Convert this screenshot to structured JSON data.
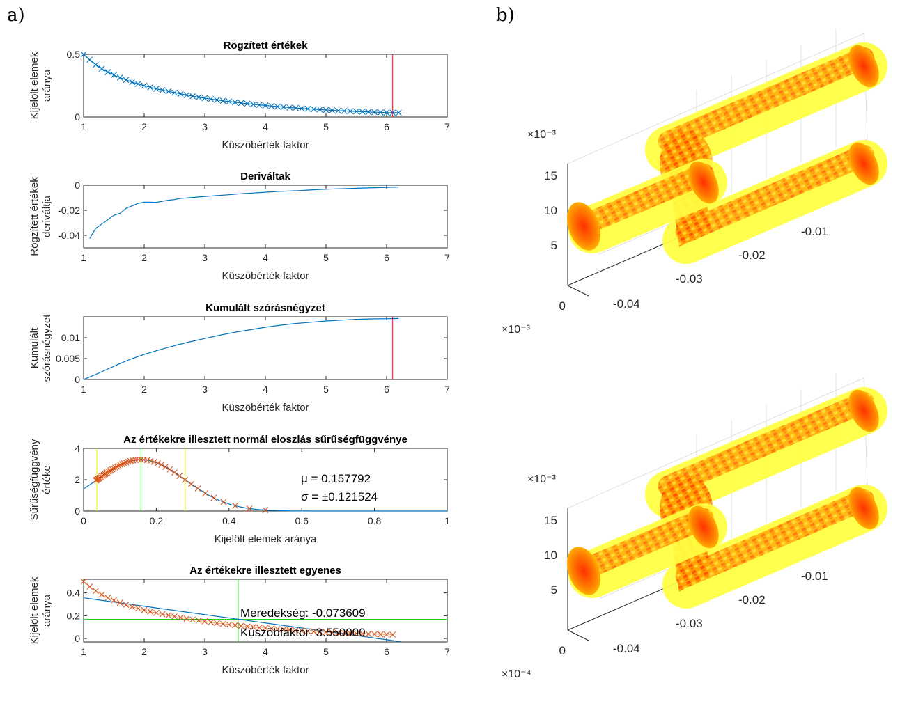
{
  "panel_a_label": "a)",
  "panel_b_label": "b)",
  "chart_data": [
    {
      "type": "line",
      "title": "Rögzített értékek",
      "xlabel": "Küszöbérték faktor",
      "ylabel": [
        "Kijelölt elemek",
        "aránya"
      ],
      "xlim": [
        1,
        7
      ],
      "ylim": [
        0,
        0.5
      ],
      "xticks": [
        1,
        2,
        3,
        4,
        5,
        6,
        7
      ],
      "yticks": [
        0,
        0.5
      ],
      "ytick_labels": [
        "0",
        "0.5"
      ],
      "marker": "x",
      "series": [
        {
          "color": "#0072BD",
          "x": [
            1.0,
            1.1,
            1.2,
            1.3,
            1.4,
            1.5,
            1.6,
            1.7,
            1.8,
            1.9,
            2.0,
            2.1,
            2.2,
            2.3,
            2.4,
            2.5,
            2.6,
            2.7,
            2.8,
            2.9,
            3.0,
            3.1,
            3.2,
            3.3,
            3.4,
            3.5,
            3.6,
            3.7,
            3.8,
            3.9,
            4.0,
            4.1,
            4.2,
            4.3,
            4.4,
            4.5,
            4.6,
            4.7,
            4.8,
            4.9,
            5.0,
            5.1,
            5.2,
            5.3,
            5.4,
            5.5,
            5.6,
            5.7,
            5.8,
            5.9,
            6.0,
            6.1,
            6.2
          ],
          "y": [
            0.5,
            0.456,
            0.417,
            0.385,
            0.358,
            0.335,
            0.314,
            0.296,
            0.279,
            0.264,
            0.25,
            0.237,
            0.225,
            0.214,
            0.204,
            0.194,
            0.184,
            0.175,
            0.166,
            0.158,
            0.15,
            0.143,
            0.136,
            0.129,
            0.123,
            0.117,
            0.111,
            0.106,
            0.101,
            0.096,
            0.092,
            0.087,
            0.083,
            0.079,
            0.075,
            0.072,
            0.068,
            0.065,
            0.062,
            0.059,
            0.056,
            0.053,
            0.05,
            0.048,
            0.046,
            0.044,
            0.042,
            0.04,
            0.038,
            0.036,
            0.035,
            0.034,
            0.034
          ]
        }
      ],
      "vline": {
        "x": 6.1,
        "color": "#FF0000"
      }
    },
    {
      "type": "line",
      "title": "Deriváltak",
      "xlabel": "Küszöbérték faktor",
      "ylabel": [
        "Rögzített értékek",
        "deriváltja"
      ],
      "xlim": [
        1,
        7
      ],
      "ylim": [
        -0.05,
        0
      ],
      "xticks": [
        1,
        2,
        3,
        4,
        5,
        6,
        7
      ],
      "yticks": [
        -0.04,
        -0.02,
        0
      ],
      "ytick_labels": [
        "-0.04",
        "-0.02",
        "0"
      ],
      "series": [
        {
          "color": "#0072BD",
          "x": [
            1.1,
            1.2,
            1.3,
            1.4,
            1.5,
            1.6,
            1.7,
            1.8,
            1.9,
            2.0,
            2.1,
            2.2,
            2.3,
            2.4,
            2.5,
            2.6,
            2.7,
            2.8,
            2.9,
            3.0,
            3.2,
            3.4,
            3.6,
            3.8,
            4.0,
            4.2,
            4.4,
            4.6,
            4.8,
            5.0,
            5.2,
            5.4,
            5.6,
            5.8,
            6.0,
            6.2
          ],
          "y": [
            -0.0425,
            -0.0345,
            -0.031,
            -0.0275,
            -0.024,
            -0.0225,
            -0.0185,
            -0.0165,
            -0.0145,
            -0.0135,
            -0.0135,
            -0.0137,
            -0.0128,
            -0.012,
            -0.0115,
            -0.0105,
            -0.0102,
            -0.0098,
            -0.0094,
            -0.009,
            -0.0083,
            -0.0076,
            -0.0068,
            -0.0062,
            -0.0056,
            -0.005,
            -0.0046,
            -0.0042,
            -0.0036,
            -0.0032,
            -0.0029,
            -0.0026,
            -0.0023,
            -0.002,
            -0.0018,
            -0.0015
          ]
        }
      ]
    },
    {
      "type": "line",
      "title": "Kumulált szórásnégyzet",
      "xlabel": "Küszöbérték faktor",
      "ylabel": [
        "Kumulált",
        "szórásnégyzet"
      ],
      "xlim": [
        1,
        7
      ],
      "ylim": [
        0,
        0.015
      ],
      "xticks": [
        1,
        2,
        3,
        4,
        5,
        6,
        7
      ],
      "yticks": [
        0,
        0.005,
        0.01
      ],
      "ytick_labels": [
        "0",
        "0.005",
        "0.01"
      ],
      "series": [
        {
          "color": "#0072BD",
          "x": [
            1.0,
            1.2,
            1.4,
            1.6,
            1.8,
            2.0,
            2.25,
            2.5,
            2.75,
            3.0,
            3.25,
            3.5,
            3.75,
            4.0,
            4.25,
            4.5,
            4.75,
            5.0,
            5.25,
            5.5,
            5.75,
            6.0,
            6.2
          ],
          "y": [
            0.0,
            0.0012,
            0.0025,
            0.0038,
            0.005,
            0.006,
            0.0071,
            0.0081,
            0.009,
            0.0098,
            0.0106,
            0.0113,
            0.0119,
            0.0125,
            0.013,
            0.0134,
            0.0137,
            0.014,
            0.0142,
            0.0144,
            0.0145,
            0.01455,
            0.0146
          ]
        }
      ],
      "vline": {
        "x": 6.1,
        "color": "#FF0000"
      }
    },
    {
      "type": "line",
      "title": "Az értékekre illesztett normál eloszlás sűrűségfüggvénye",
      "xlabel": "Kijelölt elemek aránya",
      "ylabel": [
        "Sűrűségfüggvény",
        "értéke"
      ],
      "xlim": [
        0,
        1
      ],
      "ylim": [
        0,
        4
      ],
      "xticks": [
        0,
        0.2,
        0.4,
        0.6,
        0.8,
        1
      ],
      "xtick_labels": [
        "0",
        "0.2",
        "0.4",
        "0.6",
        "0.8",
        "1"
      ],
      "yticks": [
        0,
        2,
        4
      ],
      "ytick_labels": [
        "0",
        "2",
        "4"
      ],
      "normal": {
        "mu": 0.157792,
        "sigma": 0.121524
      },
      "marker_x": [
        0.034,
        0.035,
        0.036,
        0.038,
        0.04,
        0.042,
        0.044,
        0.047,
        0.05,
        0.053,
        0.056,
        0.059,
        0.062,
        0.065,
        0.069,
        0.072,
        0.075,
        0.079,
        0.083,
        0.087,
        0.092,
        0.096,
        0.101,
        0.106,
        0.111,
        0.117,
        0.123,
        0.129,
        0.136,
        0.143,
        0.15,
        0.158,
        0.166,
        0.175,
        0.184,
        0.194,
        0.204,
        0.214,
        0.225,
        0.237,
        0.25,
        0.264,
        0.279,
        0.296,
        0.314,
        0.335,
        0.358,
        0.385,
        0.417,
        0.456,
        0.5
      ],
      "vlines": [
        {
          "x": 0.036268,
          "color": "#EDED00"
        },
        {
          "x": 0.157792,
          "color": "#00CC00"
        },
        {
          "x": 0.279316,
          "color": "#EDED00"
        }
      ],
      "annotations": [
        "μ = 0.157792",
        "σ = ±0.121524"
      ]
    },
    {
      "type": "line",
      "title": "Az értékekre illesztett egyenes",
      "xlabel": "Küszöbérték faktor",
      "ylabel": [
        "Kijelölt elemek",
        "aránya"
      ],
      "xlim": [
        1,
        7
      ],
      "ylim": [
        -0.03,
        0.52
      ],
      "xticks": [
        1,
        2,
        3,
        4,
        5,
        6,
        7
      ],
      "yticks": [
        0,
        0.2,
        0.4
      ],
      "ytick_labels": [
        "0",
        "0.2",
        "0.4"
      ],
      "fit_line": {
        "slope": -0.073609,
        "intercept": 0.4307,
        "x": [
          1,
          6.25
        ],
        "color": "#0072BD"
      },
      "hline": {
        "y": 0.1675,
        "color": "#00CC00"
      },
      "vline": {
        "x": 3.55,
        "color": "#00CC00"
      },
      "marker_x": [
        1.0,
        1.1,
        1.2,
        1.3,
        1.4,
        1.5,
        1.6,
        1.7,
        1.8,
        1.9,
        2.0,
        2.1,
        2.2,
        2.3,
        2.4,
        2.5,
        2.6,
        2.7,
        2.8,
        2.9,
        3.0,
        3.1,
        3.2,
        3.3,
        3.4,
        3.5,
        3.6,
        3.7,
        3.8,
        3.9,
        4.0,
        4.1,
        4.2,
        4.3,
        4.4,
        4.5,
        4.6,
        4.7,
        4.8,
        4.9,
        5.0,
        5.1,
        5.2,
        5.3,
        5.4,
        5.5,
        5.6,
        5.7,
        5.8,
        5.9,
        6.0,
        6.1
      ],
      "marker_y": [
        0.5,
        0.456,
        0.417,
        0.385,
        0.358,
        0.335,
        0.314,
        0.296,
        0.279,
        0.264,
        0.25,
        0.237,
        0.225,
        0.214,
        0.204,
        0.194,
        0.184,
        0.175,
        0.166,
        0.158,
        0.15,
        0.143,
        0.136,
        0.129,
        0.123,
        0.117,
        0.111,
        0.106,
        0.101,
        0.096,
        0.092,
        0.087,
        0.083,
        0.079,
        0.075,
        0.072,
        0.068,
        0.065,
        0.062,
        0.059,
        0.056,
        0.053,
        0.05,
        0.048,
        0.046,
        0.044,
        0.042,
        0.04,
        0.038,
        0.036,
        0.035,
        0.034
      ],
      "annotations": [
        "Meredekség: -0.073609",
        "Küszöbfaktor: 3.550000"
      ]
    }
  ],
  "panel_b": {
    "top": {
      "exp_y": "×10⁻³",
      "exp_bottom": "×10⁻³",
      "z_ticks": [
        "15",
        "10",
        "5",
        "0"
      ],
      "y_ticks": [
        "-0.01",
        "-0.02",
        "-0.03",
        "-0.04"
      ]
    },
    "bottom": {
      "exp_y": "×10⁻³",
      "exp_bottom": "×10⁻⁴",
      "z_ticks": [
        "15",
        "10",
        "5",
        "0"
      ],
      "y_ticks": [
        "-0.01",
        "-0.02",
        "-0.03",
        "-0.04"
      ]
    },
    "colors": {
      "light": "#FFFF40",
      "mid": "#FFB000",
      "dark": "#FF2000"
    }
  }
}
